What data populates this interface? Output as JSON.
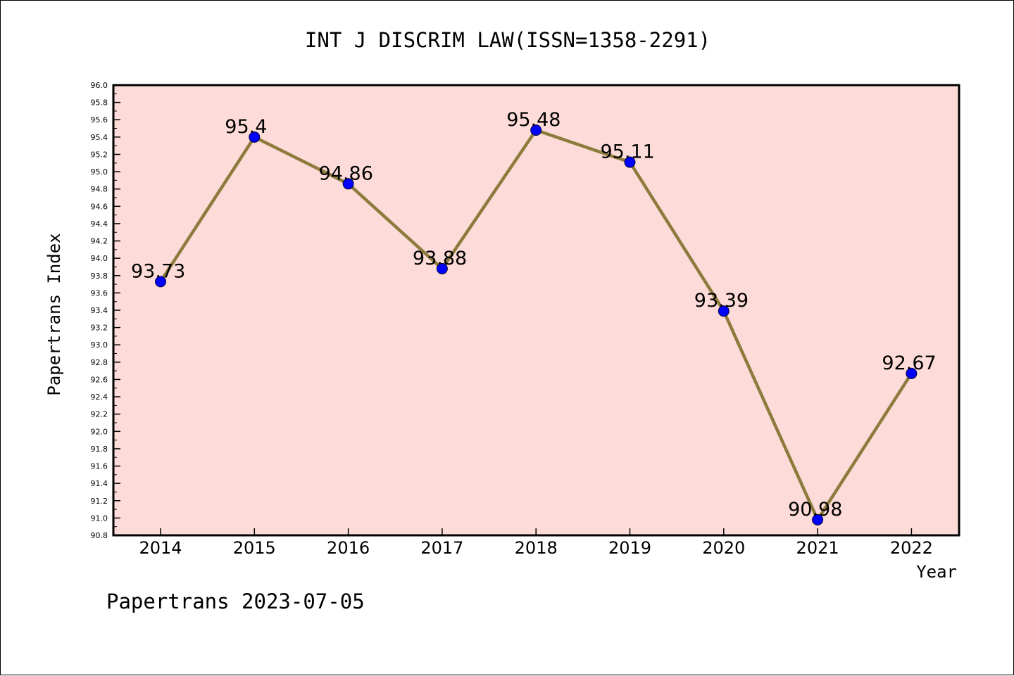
{
  "chart_data": {
    "type": "line",
    "title": "INT J DISCRIM LAW(ISSN=1358-2291)",
    "xlabel": "Year",
    "ylabel": "Papertrans Index",
    "categories": [
      "2014",
      "2015",
      "2016",
      "2017",
      "2018",
      "2019",
      "2020",
      "2021",
      "2022"
    ],
    "values": [
      93.73,
      95.4,
      94.86,
      93.88,
      95.48,
      95.11,
      93.39,
      90.98,
      92.67
    ],
    "data_labels": [
      "93.73",
      "95.4",
      "94.86",
      "93.88",
      "95.48",
      "95.11",
      "93.39",
      "90.98",
      "92.67"
    ],
    "ylim": [
      90.8,
      96.0
    ],
    "y_ticks": [
      "90.8",
      "91.0",
      "91.2",
      "91.4",
      "91.6",
      "91.8",
      "92.0",
      "92.2",
      "92.4",
      "92.6",
      "92.8",
      "93.0",
      "93.2",
      "93.4",
      "93.6",
      "93.8",
      "94.0",
      "94.2",
      "94.4",
      "94.6",
      "94.8",
      "95.0",
      "95.2",
      "95.4",
      "95.6",
      "95.8",
      "96.0"
    ],
    "grid": false,
    "colors": {
      "plot_background": "#fddbd8",
      "line": "#8c7b3c",
      "marker": "#0000ff"
    }
  },
  "footer": {
    "caption": "Papertrans 2023-07-05"
  }
}
